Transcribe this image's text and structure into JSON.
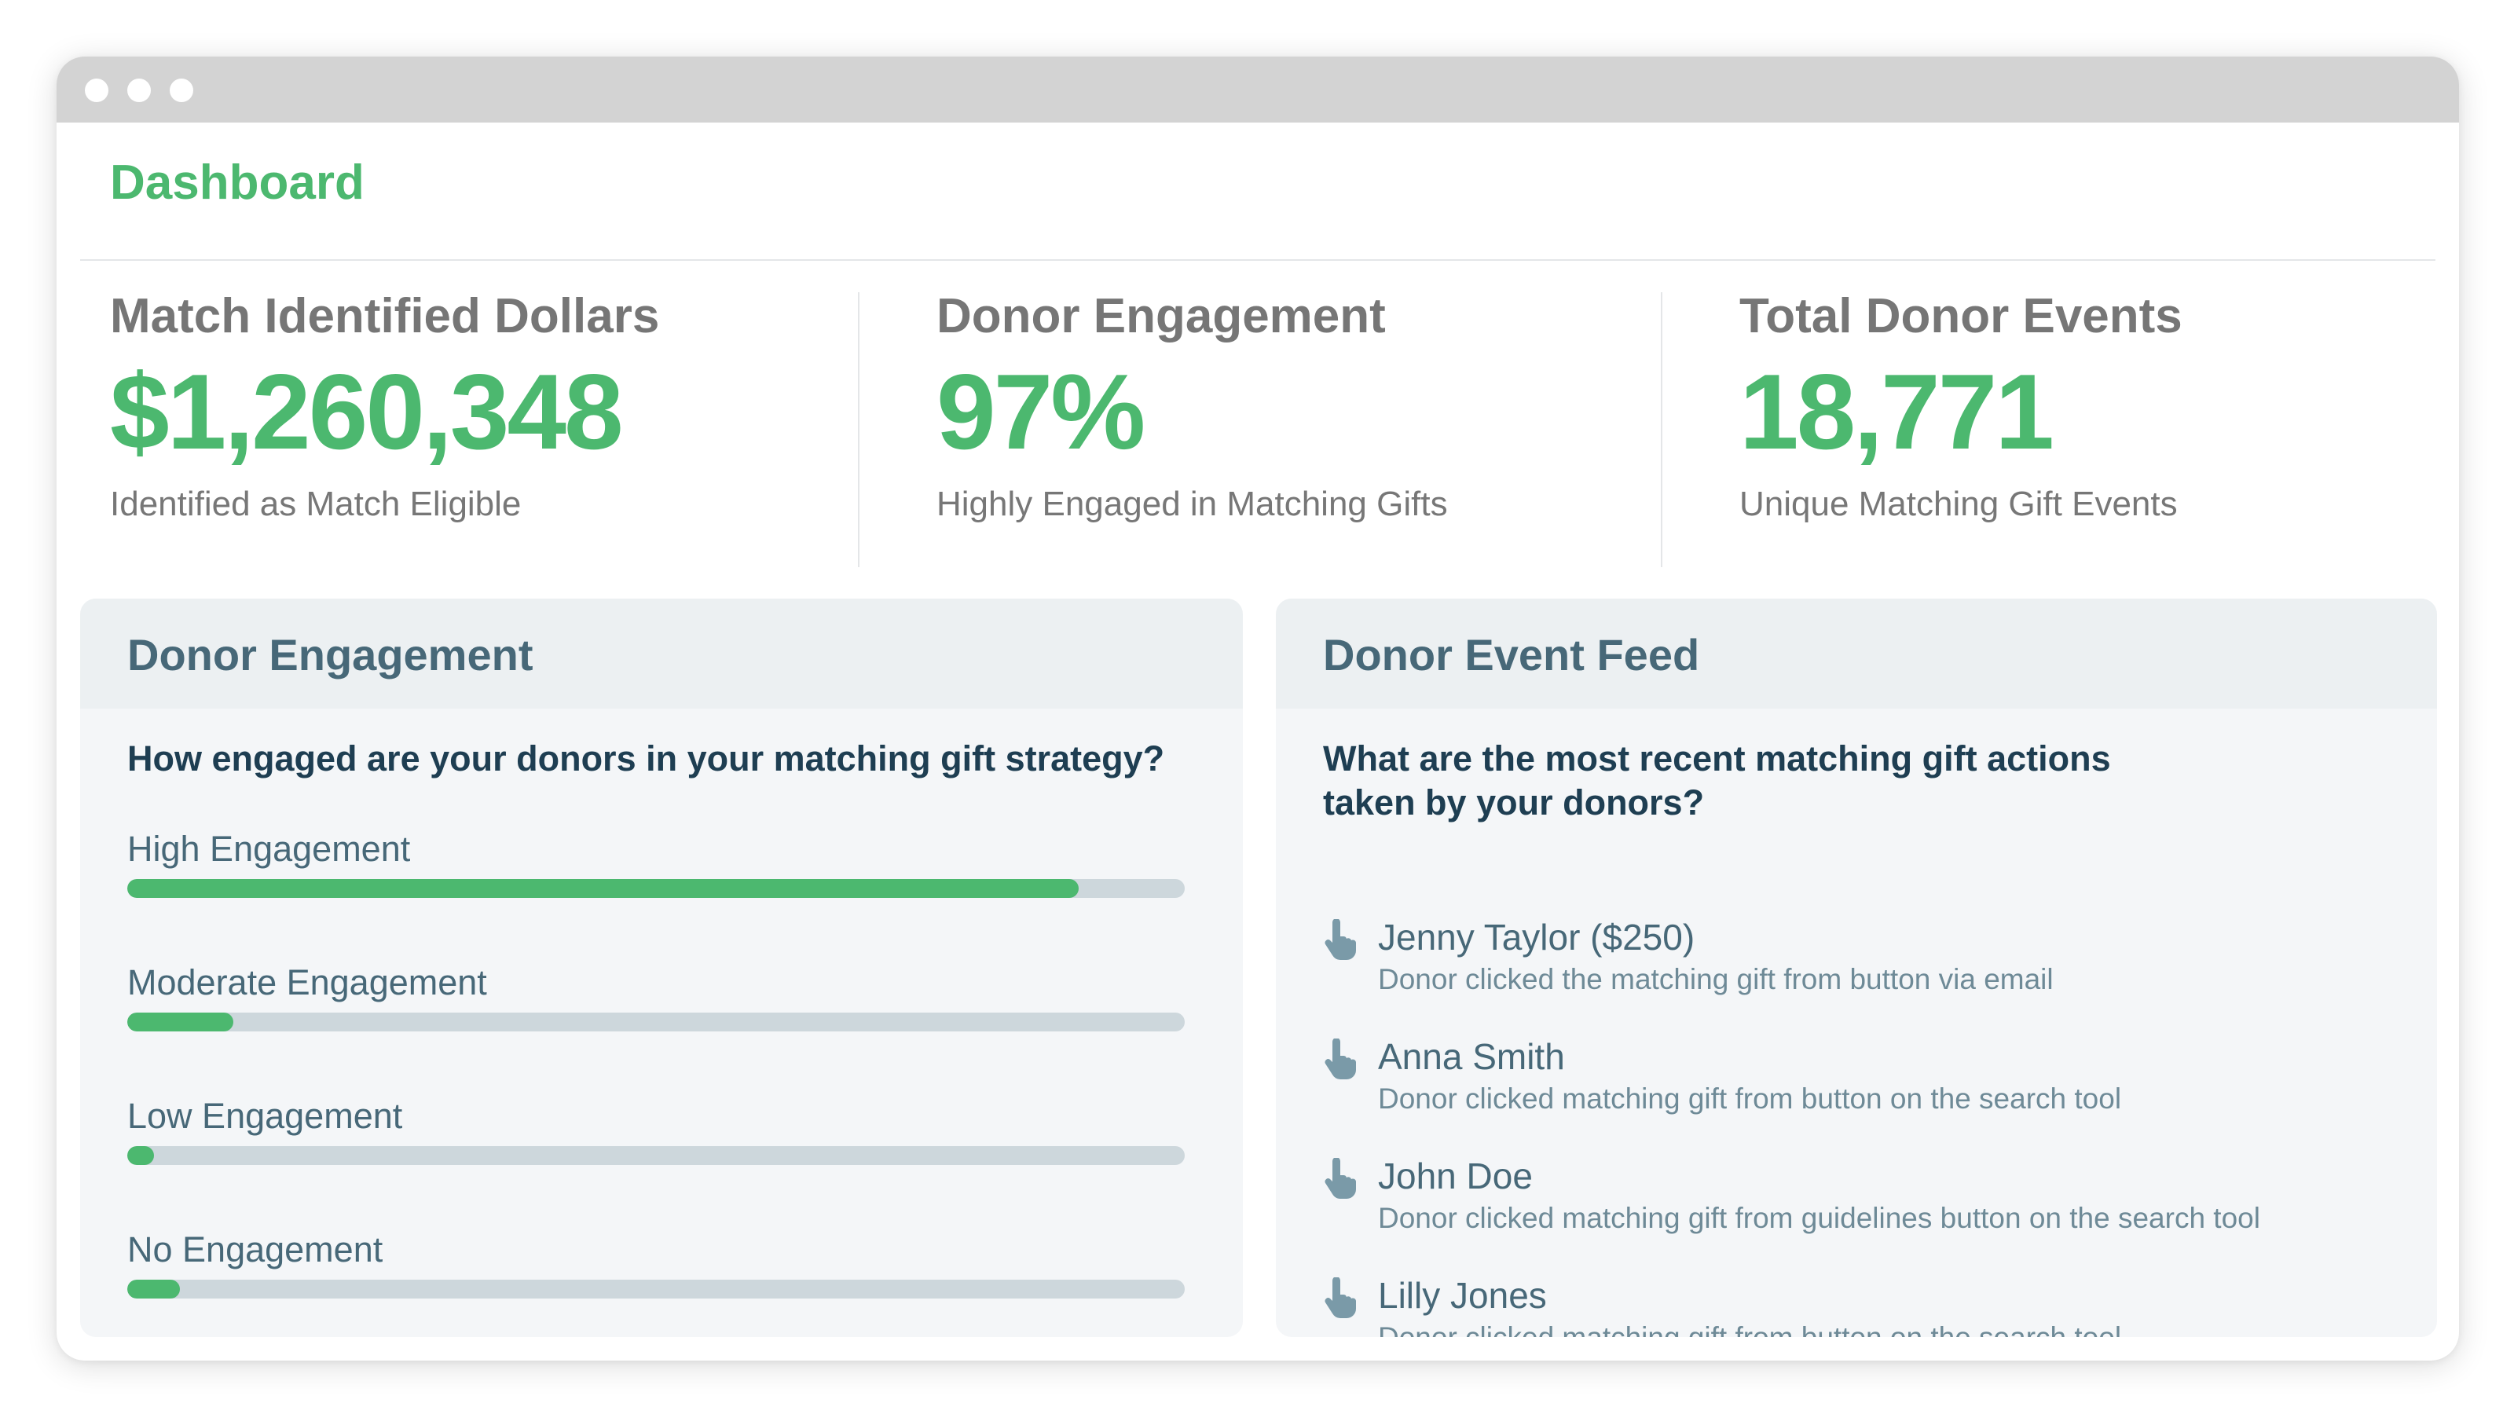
{
  "header": {
    "title": "Dashboard"
  },
  "stats": [
    {
      "label": "Match Identified Dollars",
      "value": "$1,260,348",
      "sub": "Identified as Match Eligible"
    },
    {
      "label": "Donor Engagement",
      "value": "97%",
      "sub": "Highly Engaged in Matching Gifts"
    },
    {
      "label": "Total Donor Events",
      "value": "18,771",
      "sub": "Unique Matching Gift Events"
    }
  ],
  "engagement_panel": {
    "title": "Donor Engagement",
    "question": "How engaged are your donors in your matching gift strategy?",
    "rows": [
      {
        "label": "High Engagement",
        "fraction": 0.9
      },
      {
        "label": "Moderate Engagement",
        "fraction": 0.1
      },
      {
        "label": "Low Engagement",
        "fraction": 0.025
      },
      {
        "label": "No Engagement",
        "fraction": 0.05
      }
    ]
  },
  "feed_panel": {
    "title": "Donor Event Feed",
    "question": "What are the most recent matching gift actions taken by your donors?",
    "items": [
      {
        "name": "Jenny Taylor ($250)",
        "desc": "Donor clicked the matching gift from button via email",
        "icon": "pointing-hand-icon"
      },
      {
        "name": "Anna Smith",
        "desc": "Donor clicked matching gift from button on the search tool",
        "icon": "pointing-hand-icon"
      },
      {
        "name": "John Doe",
        "desc": "Donor clicked matching gift from guidelines button on the search tool",
        "icon": "pointing-hand-icon"
      },
      {
        "name": "Lilly Jones",
        "desc": "Donor clicked matching gift from button on the search tool",
        "icon": "pointing-hand-icon"
      }
    ]
  },
  "colors": {
    "accent": "#4cb86f",
    "panel_title": "#476878",
    "bar_track": "#cdd7dc"
  }
}
